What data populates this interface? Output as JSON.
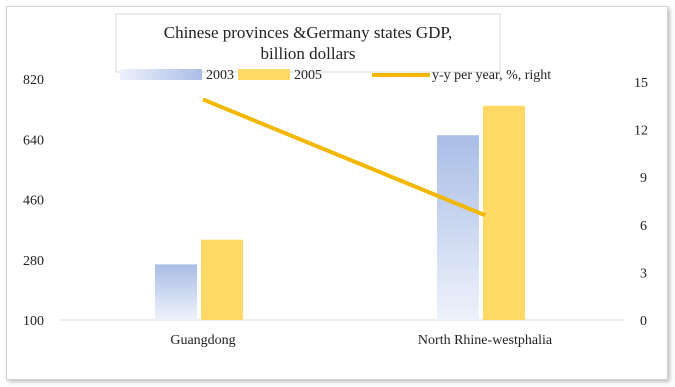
{
  "chart_data": {
    "type": "bar",
    "title": "Chinese provinces &Germany states GDP, billion dollars",
    "title_lines": [
      "Chinese provinces &Germany states GDP,",
      "billion dollars"
    ],
    "categories": [
      "Guangdong",
      "North Rhine-westphalia"
    ],
    "series": [
      {
        "name": "2003",
        "kind": "bar",
        "axis": "left",
        "values": [
          266,
          652
        ],
        "color": "#a9bde6"
      },
      {
        "name": "2005",
        "kind": "bar",
        "axis": "left",
        "values": [
          340,
          740
        ],
        "color": "#ffd966"
      },
      {
        "name": "y-y per year, %, right",
        "kind": "line",
        "axis": "right",
        "values": [
          13.9,
          6.6
        ],
        "color": "#f2b800"
      }
    ],
    "yleft": {
      "min": 100,
      "max": 820,
      "ticks": [
        100,
        280,
        460,
        640,
        820
      ]
    },
    "yright": {
      "min": 0,
      "max": 15,
      "ticks": [
        0,
        3,
        6,
        9,
        12,
        15
      ]
    },
    "grid": false,
    "legend_position": "top"
  }
}
